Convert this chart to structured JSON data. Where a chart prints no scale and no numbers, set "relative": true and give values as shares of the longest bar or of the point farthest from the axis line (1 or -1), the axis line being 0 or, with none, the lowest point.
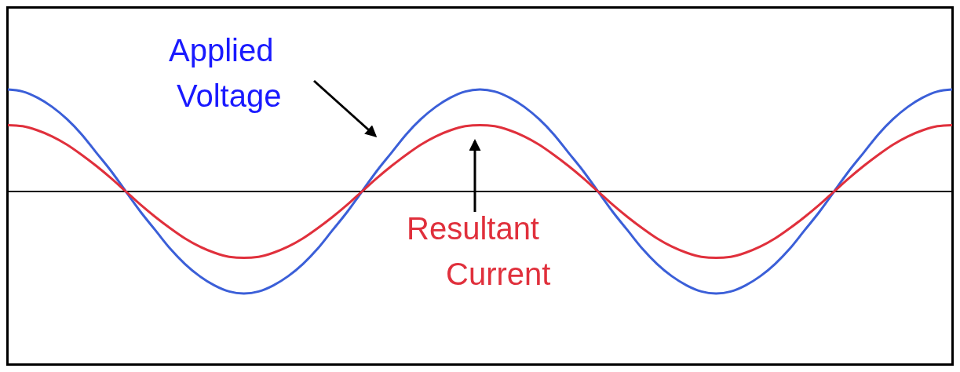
{
  "chart_data": {
    "type": "line",
    "relative": true,
    "categories": [
      null,
      null,
      null,
      null,
      null,
      null,
      null,
      null,
      null,
      null,
      null,
      null,
      null,
      null,
      null,
      null,
      null,
      null,
      null,
      null,
      null,
      null,
      null,
      null,
      null,
      null,
      null,
      null,
      null,
      null,
      null,
      null,
      null,
      null,
      null,
      null,
      null,
      null,
      null,
      null,
      null,
      null,
      null,
      null,
      null,
      null,
      null,
      null,
      null,
      null,
      null,
      null,
      null,
      null,
      null,
      null,
      null,
      null,
      null,
      null,
      null,
      null,
      null,
      null,
      null
    ],
    "series": [
      {
        "name": "Applied Voltage",
        "color": "#3b5fd8",
        "values": [
          1,
          0.98,
          0.92,
          0.83,
          0.71,
          0.56,
          0.38,
          0.2,
          0,
          -0.2,
          -0.38,
          -0.56,
          -0.71,
          -0.83,
          -0.92,
          -0.98,
          -1,
          -0.98,
          -0.92,
          -0.83,
          -0.71,
          -0.56,
          -0.38,
          -0.2,
          0,
          0.2,
          0.38,
          0.56,
          0.71,
          0.83,
          0.92,
          0.98,
          1,
          0.98,
          0.92,
          0.83,
          0.71,
          0.56,
          0.38,
          0.2,
          0,
          -0.2,
          -0.38,
          -0.56,
          -0.71,
          -0.83,
          -0.92,
          -0.98,
          -1,
          -0.98,
          -0.92,
          -0.83,
          -0.71,
          -0.56,
          -0.38,
          -0.2,
          0,
          0.2,
          0.38,
          0.56,
          0.71,
          0.83,
          0.92,
          0.98,
          1
        ]
      },
      {
        "name": "Resultant Current",
        "color": "#e0303c",
        "values": [
          0.65,
          0.64,
          0.6,
          0.54,
          0.46,
          0.36,
          0.25,
          0.13,
          0,
          -0.13,
          -0.25,
          -0.36,
          -0.46,
          -0.54,
          -0.6,
          -0.64,
          -0.65,
          -0.64,
          -0.6,
          -0.54,
          -0.46,
          -0.36,
          -0.25,
          -0.13,
          0,
          0.13,
          0.25,
          0.36,
          0.46,
          0.54,
          0.6,
          0.64,
          0.65,
          0.64,
          0.6,
          0.54,
          0.46,
          0.36,
          0.25,
          0.13,
          0,
          -0.13,
          -0.25,
          -0.36,
          -0.46,
          -0.54,
          -0.6,
          -0.64,
          -0.65,
          -0.64,
          -0.6,
          -0.54,
          -0.46,
          -0.36,
          -0.25,
          -0.13,
          0,
          0.13,
          0.25,
          0.36,
          0.46,
          0.54,
          0.6,
          0.64,
          0.65
        ]
      }
    ]
  }
}
